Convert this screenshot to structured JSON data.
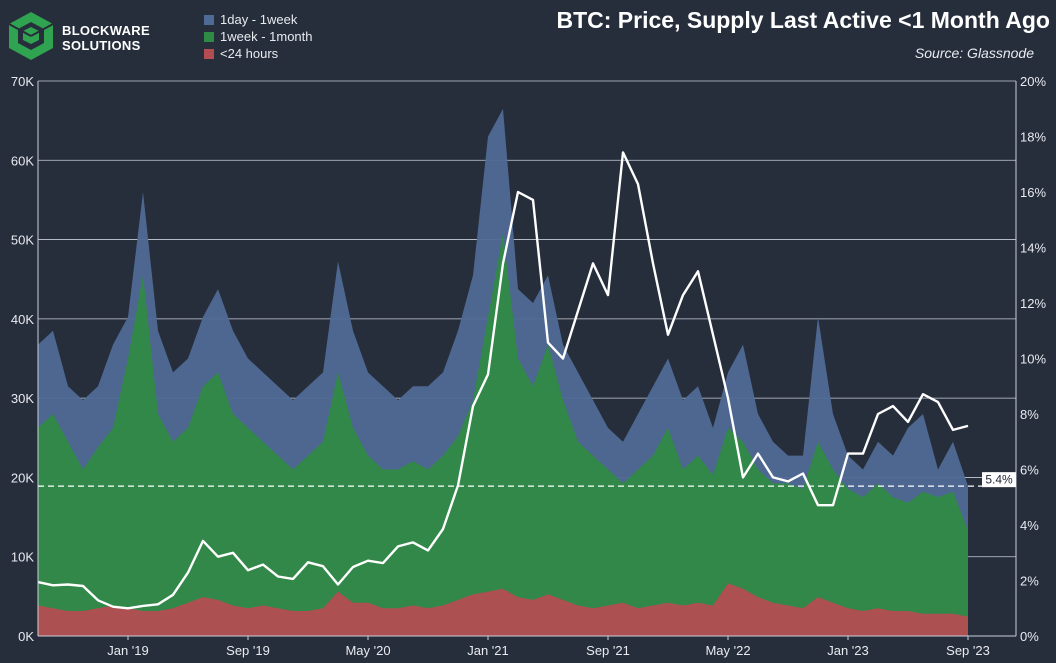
{
  "brand": {
    "line1": "BLOCKWARE",
    "line2": "SOLUTIONS"
  },
  "colors": {
    "background": "#262d3b",
    "day_week": "#4f6a95",
    "week_month": "#2f8a45",
    "under_24h": "#b44d52",
    "price": "#ffffff",
    "logo": "#2fa34f"
  },
  "legend": [
    {
      "label": "1day - 1week",
      "color": "#4f6a95"
    },
    {
      "label": "1week - 1month",
      "color": "#2f8a45"
    },
    {
      "label": "<24 hours",
      "color": "#b44d52"
    }
  ],
  "chart_data": {
    "type": "area",
    "title": "BTC: Price, Supply Last Active <1 Month Ago",
    "subtitle": "Source: Glassnode",
    "x": [
      "2018-07",
      "2018-08",
      "2018-09",
      "2018-10",
      "2018-11",
      "2018-12",
      "2019-01",
      "2019-02",
      "2019-03",
      "2019-04",
      "2019-05",
      "2019-06",
      "2019-07",
      "2019-08",
      "2019-09",
      "2019-10",
      "2019-11",
      "2019-12",
      "2020-01",
      "2020-02",
      "2020-03",
      "2020-04",
      "2020-05",
      "2020-06",
      "2020-07",
      "2020-08",
      "2020-09",
      "2020-10",
      "2020-11",
      "2020-12",
      "2021-01",
      "2021-02",
      "2021-03",
      "2021-04",
      "2021-05",
      "2021-06",
      "2021-07",
      "2021-08",
      "2021-09",
      "2021-10",
      "2021-11",
      "2021-12",
      "2022-01",
      "2022-02",
      "2022-03",
      "2022-04",
      "2022-05",
      "2022-06",
      "2022-07",
      "2022-08",
      "2022-09",
      "2022-10",
      "2022-11",
      "2022-12",
      "2023-01",
      "2023-02",
      "2023-03",
      "2023-04",
      "2023-05",
      "2023-06",
      "2023-07",
      "2023-08",
      "2023-09"
    ],
    "x_ticks": [
      "Jan '19",
      "Sep '19",
      "May '20",
      "Jan '21",
      "Sep '21",
      "May '22",
      "Jan '23",
      "Sep '23"
    ],
    "x_tick_dates": [
      "2019-01",
      "2019-09",
      "2020-05",
      "2021-01",
      "2021-09",
      "2022-05",
      "2023-01",
      "2023-09"
    ],
    "y_left": {
      "ticks": [
        "0K",
        "10K",
        "20K",
        "30K",
        "40K",
        "50K",
        "60K",
        "70K"
      ],
      "range": [
        0,
        70000
      ]
    },
    "y_right": {
      "ticks": [
        "0%",
        "2%",
        "4%",
        "6%",
        "8%",
        "10%",
        "12%",
        "14%",
        "16%",
        "18%",
        "20%"
      ],
      "range": [
        0,
        20
      ]
    },
    "series": [
      {
        "name": "<24 hours",
        "axis": "right",
        "color": "#b44d52",
        "values": [
          1.1,
          1.0,
          0.9,
          0.9,
          1.0,
          1.1,
          1.0,
          0.9,
          0.9,
          1.0,
          1.2,
          1.4,
          1.3,
          1.1,
          1.0,
          1.1,
          1.0,
          0.9,
          0.9,
          1.0,
          1.6,
          1.2,
          1.2,
          1.0,
          1.0,
          1.1,
          1.0,
          1.1,
          1.3,
          1.5,
          1.6,
          1.7,
          1.4,
          1.3,
          1.5,
          1.3,
          1.1,
          1.0,
          1.1,
          1.2,
          1.0,
          1.1,
          1.2,
          1.1,
          1.2,
          1.1,
          1.9,
          1.7,
          1.4,
          1.2,
          1.1,
          1.0,
          1.4,
          1.2,
          1.0,
          0.9,
          1.0,
          0.9,
          0.9,
          0.8,
          0.8,
          0.8,
          0.7
        ]
      },
      {
        "name": "1week - 1month",
        "axis": "right",
        "color": "#2f8a45",
        "values": [
          7.5,
          8.0,
          7.0,
          6.0,
          6.8,
          7.5,
          10.0,
          13.0,
          8.0,
          7.0,
          7.5,
          9.0,
          9.5,
          8.0,
          7.5,
          7.0,
          6.5,
          6.0,
          6.5,
          7.0,
          9.5,
          7.5,
          6.5,
          6.0,
          6.0,
          6.3,
          6.0,
          6.5,
          7.2,
          8.5,
          11.5,
          14.5,
          10.0,
          9.0,
          10.5,
          8.5,
          7.0,
          6.5,
          6.0,
          5.5,
          6.0,
          6.5,
          7.5,
          6.0,
          6.5,
          5.8,
          7.5,
          7.0,
          6.0,
          5.5,
          5.5,
          5.3,
          7.0,
          6.0,
          5.3,
          5.0,
          5.5,
          5.0,
          4.8,
          5.2,
          5.0,
          5.2,
          3.8
        ]
      },
      {
        "name": "1day - 1week",
        "axis": "right",
        "color": "#4f6a95",
        "values": [
          10.5,
          11.0,
          9.0,
          8.5,
          9.0,
          10.5,
          11.5,
          16.0,
          11.0,
          9.5,
          10.0,
          11.5,
          12.5,
          11.0,
          10.0,
          9.5,
          9.0,
          8.5,
          9.0,
          9.5,
          13.5,
          11.0,
          9.5,
          9.0,
          8.5,
          9.0,
          9.0,
          9.5,
          11.0,
          13.0,
          18.0,
          19.0,
          12.5,
          12.0,
          13.0,
          10.5,
          9.5,
          8.5,
          7.5,
          7.0,
          8.0,
          9.0,
          10.0,
          8.5,
          9.0,
          7.5,
          9.5,
          10.5,
          8.0,
          7.0,
          6.5,
          6.5,
          11.5,
          8.0,
          6.5,
          6.0,
          7.0,
          6.5,
          7.5,
          8.0,
          6.0,
          7.0,
          5.4
        ]
      },
      {
        "name": "BTC Price",
        "axis": "left",
        "color": "#ffffff",
        "values": [
          6800,
          6400,
          6500,
          6300,
          4500,
          3700,
          3500,
          3800,
          4000,
          5200,
          8000,
          12000,
          10000,
          10500,
          8300,
          9000,
          7500,
          7200,
          9300,
          8800,
          6500,
          8700,
          9500,
          9200,
          11300,
          11800,
          10800,
          13500,
          19000,
          29000,
          33000,
          47000,
          56000,
          55000,
          37000,
          35000,
          41000,
          47000,
          43000,
          61000,
          57000,
          47000,
          38000,
          43000,
          46000,
          38000,
          30000,
          20000,
          23000,
          20000,
          19500,
          20500,
          16500,
          16500,
          23000,
          23000,
          28000,
          29000,
          27000,
          30500,
          29500,
          26000,
          26500
        ]
      }
    ],
    "annotation": {
      "value": "5.4%",
      "y": 5.4,
      "style": "dashed"
    },
    "grid": true
  }
}
